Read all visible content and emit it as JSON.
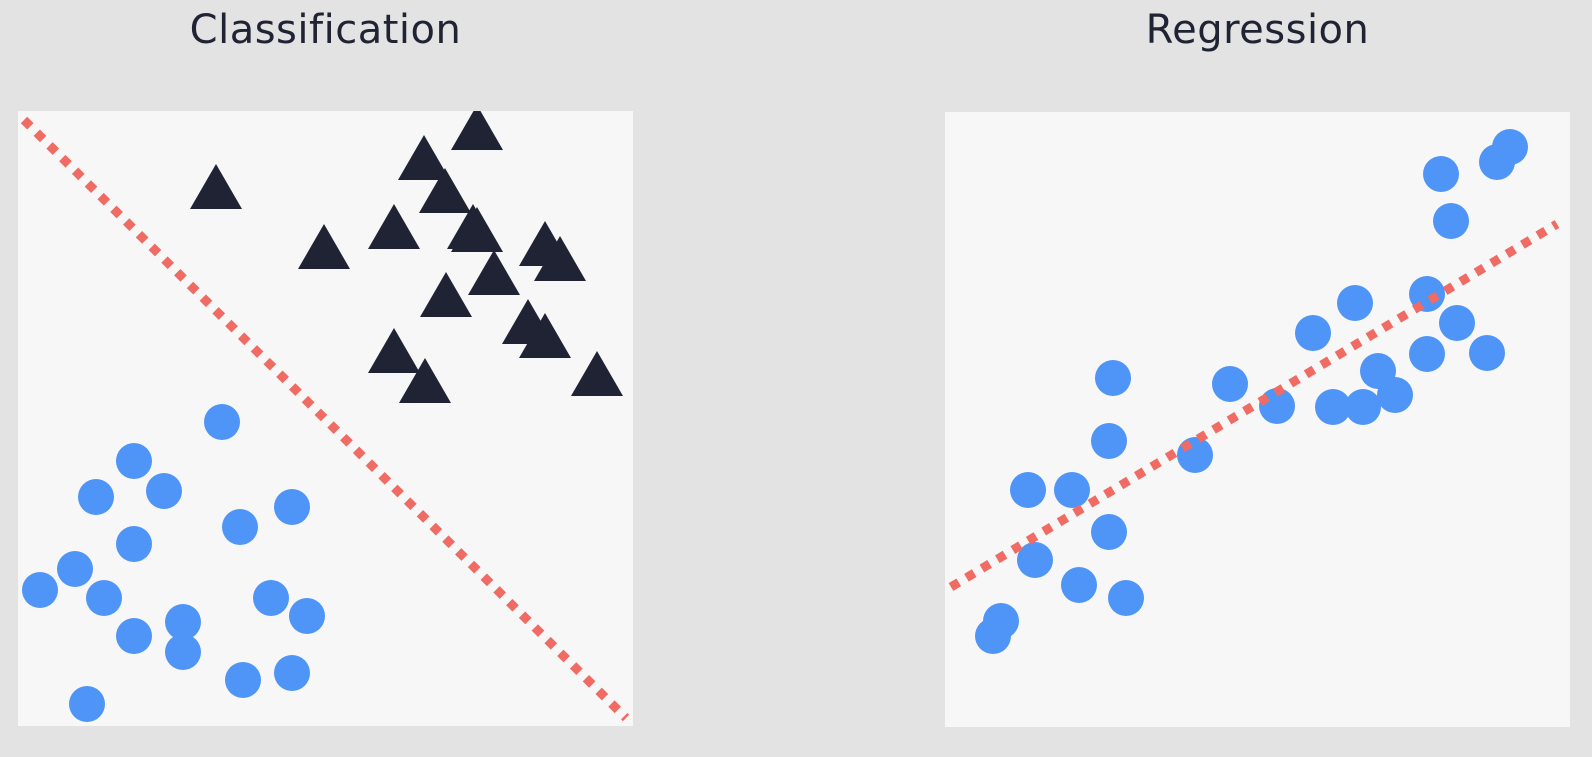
{
  "panels": {
    "classification": {
      "title": "Classification"
    },
    "regression": {
      "title": "Regression"
    }
  },
  "colors": {
    "background": "#e3e3e3",
    "panel": "#f7f7f7",
    "circle": "#4f94f7",
    "triangle": "#1f2333",
    "line": "#f06b63",
    "title": "#1f2333"
  },
  "chart_data": [
    {
      "type": "scatter",
      "title": "Classification",
      "xlim": [
        0,
        615
      ],
      "ylim": [
        0,
        615
      ],
      "grid": false,
      "series": [
        {
          "marker": "circle",
          "color": "#4f94f7",
          "points": [
            [
              204,
              304
            ],
            [
              116,
              265
            ],
            [
              78,
              229
            ],
            [
              146,
              235
            ],
            [
              222,
              199
            ],
            [
              274,
              219
            ],
            [
              116,
              182
            ],
            [
              57,
              157
            ],
            [
              22,
              136
            ],
            [
              86,
              128
            ],
            [
              116,
              90
            ],
            [
              165,
              104
            ],
            [
              165,
              74
            ],
            [
              253,
              128
            ],
            [
              289,
              110
            ],
            [
              225,
              46
            ],
            [
              274,
              53
            ],
            [
              69,
              22
            ]
          ]
        },
        {
          "marker": "triangle",
          "color": "#1f2333",
          "points": [
            [
              459,
              591
            ],
            [
              406,
              561
            ],
            [
              427,
              528
            ],
            [
              198,
              532
            ],
            [
              376,
              492
            ],
            [
              455,
              492
            ],
            [
              459,
              489
            ],
            [
              306,
              472
            ],
            [
              527,
              475
            ],
            [
              542,
              460
            ],
            [
              476,
              446
            ],
            [
              428,
              424
            ],
            [
              510,
              397
            ],
            [
              527,
              383
            ],
            [
              376,
              368
            ],
            [
              407,
              338
            ],
            [
              579,
              345
            ]
          ]
        },
        {
          "type": "line",
          "style": "dashed",
          "color": "#f06b63",
          "x": [
            6,
            608
          ],
          "y": [
            606,
            8
          ]
        }
      ]
    },
    {
      "type": "scatter",
      "title": "Regression",
      "xlim": [
        0,
        625
      ],
      "ylim": [
        0,
        615
      ],
      "grid": false,
      "series": [
        {
          "marker": "circle",
          "color": "#4f94f7",
          "points": [
            [
              496,
              553
            ],
            [
              552,
              565
            ],
            [
              565,
              580
            ],
            [
              506,
              506
            ],
            [
              482,
              433
            ],
            [
              512,
              404
            ],
            [
              542,
              374
            ],
            [
              482,
              373
            ],
            [
              168,
              349
            ],
            [
              285,
              343
            ],
            [
              368,
              394
            ],
            [
              410,
              424
            ],
            [
              433,
              356
            ],
            [
              450,
              332
            ],
            [
              388,
              320
            ],
            [
              332,
              321
            ],
            [
              418,
              320
            ],
            [
              164,
              286
            ],
            [
              250,
              272
            ],
            [
              83,
              237
            ],
            [
              127,
              237
            ],
            [
              164,
              195
            ],
            [
              90,
              167
            ],
            [
              134,
              142
            ],
            [
              181,
              129
            ],
            [
              56,
              106
            ],
            [
              48,
              91
            ]
          ]
        },
        {
          "type": "line",
          "style": "dashed",
          "color": "#f06b63",
          "x": [
            6,
            612
          ],
          "y": [
            140,
            503
          ]
        }
      ]
    }
  ]
}
